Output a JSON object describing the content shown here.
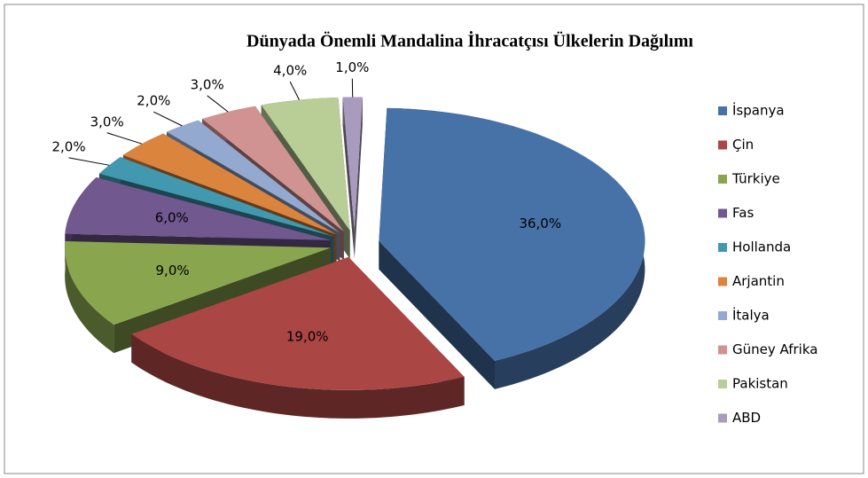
{
  "chart_data": {
    "type": "pie3d",
    "title": "Dünyada Önemli Mandalina İhracatçısı Ülkelerin Dağılımı",
    "categories": [
      "İspanya",
      "Çin",
      "Türkiye",
      "Fas",
      "Hollanda",
      "Arjantin",
      "İtalya",
      "Güney Afrika",
      "Pakistan",
      "ABD"
    ],
    "values": [
      36,
      19,
      9,
      6,
      2,
      3,
      2,
      3,
      4,
      1
    ],
    "value_labels": [
      "36,0%",
      "19,0%",
      "9,0%",
      "6,0%",
      "2,0%",
      "3,0%",
      "2,0%",
      "3,0%",
      "4,0%",
      "1,0%"
    ],
    "colors": [
      "#4672a8",
      "#aa4643",
      "#89a54e",
      "#71588f",
      "#4198af",
      "#db843d",
      "#93a9cf",
      "#d19392",
      "#b9cd96",
      "#a99bbd"
    ],
    "legend": "right"
  }
}
